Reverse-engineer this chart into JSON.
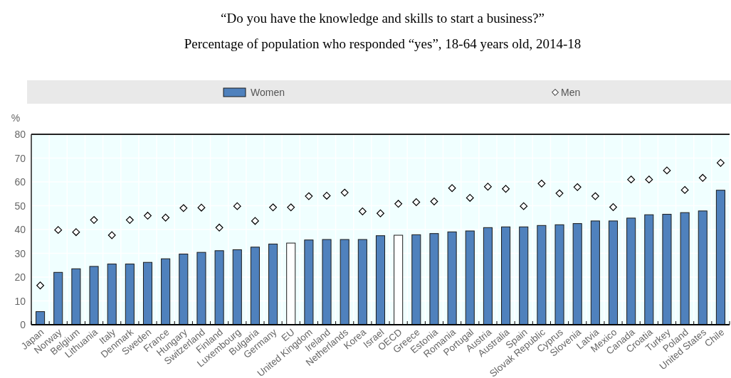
{
  "chart_data": {
    "type": "bar",
    "title": "“Do you have the knowledge and skills to start a business?”",
    "subtitle": "Percentage of population who responded “yes”, 18-64 years old, 2014-18",
    "ylabel": "%",
    "categories": [
      "Japan",
      "Norway",
      "Belgium",
      "Lithuania",
      "Italy",
      "Denmark",
      "Sweden",
      "France",
      "Hungary",
      "Switzerland",
      "Finland",
      "Luxembourg",
      "Bulgaria",
      "Germany",
      "EU",
      "United Kingdom",
      "Ireland",
      "Netherlands",
      "Korea",
      "Israel",
      "OECD",
      "Greece",
      "Estonia",
      "Romania",
      "Portugal",
      "Austria",
      "Australia",
      "Spain",
      "Slovak Republic",
      "Cyprus",
      "Slovenia",
      "Latvia",
      "Mexico",
      "Canada",
      "Croatia",
      "Turkey",
      "Poland",
      "United States",
      "Chile"
    ],
    "series": [
      {
        "name": "Women",
        "color": "#4f81bd",
        "colors": [
          "#4f81bd",
          "#4f81bd",
          "#4f81bd",
          "#4f81bd",
          "#4f81bd",
          "#4f81bd",
          "#4f81bd",
          "#4f81bd",
          "#4f81bd",
          "#4f81bd",
          "#4f81bd",
          "#4f81bd",
          "#4f81bd",
          "#4f81bd",
          "#ffffff",
          "#4f81bd",
          "#4f81bd",
          "#4f81bd",
          "#4f81bd",
          "#4f81bd",
          "#ffffff",
          "#4f81bd",
          "#4f81bd",
          "#4f81bd",
          "#4f81bd",
          "#4f81bd",
          "#4f81bd",
          "#4f81bd",
          "#4f81bd",
          "#4f81bd",
          "#4f81bd",
          "#4f81bd",
          "#4f81bd",
          "#4f81bd",
          "#4f81bd",
          "#4f81bd",
          "#4f81bd",
          "#4f81bd",
          "#4f81bd"
        ],
        "values": [
          5.5,
          22,
          23.5,
          24.5,
          25.5,
          25.5,
          26.2,
          27.7,
          29.7,
          30.4,
          31.1,
          31.5,
          32.6,
          33.9,
          34.3,
          35.6,
          35.8,
          35.8,
          35.8,
          37.4,
          37.6,
          37.8,
          38.3,
          39,
          39.4,
          40.8,
          41.1,
          41.1,
          41.7,
          42,
          42.5,
          43.6,
          43.6,
          44.8,
          46.2,
          46.4,
          47.1,
          47.8,
          56.5
        ]
      },
      {
        "name": "Men",
        "type": "scatter",
        "marker": "diamond",
        "color": "#ffffff",
        "values": [
          16.5,
          39.8,
          38.9,
          44,
          37.6,
          44,
          45.8,
          45,
          49,
          49.2,
          40.8,
          49.8,
          43.6,
          49.3,
          49.3,
          54,
          54.2,
          55.5,
          47.6,
          46.8,
          50.8,
          51.5,
          51.8,
          57.4,
          53.3,
          58,
          57.1,
          49.8,
          59.3,
          55.2,
          57.8,
          54,
          49.4,
          61,
          61,
          64.8,
          56.6,
          61.7,
          68
        ]
      }
    ],
    "ylim": [
      0,
      80
    ],
    "yticks": [
      0,
      10,
      20,
      30,
      40,
      50,
      60,
      70,
      80
    ],
    "grid": true,
    "legend": "top"
  }
}
